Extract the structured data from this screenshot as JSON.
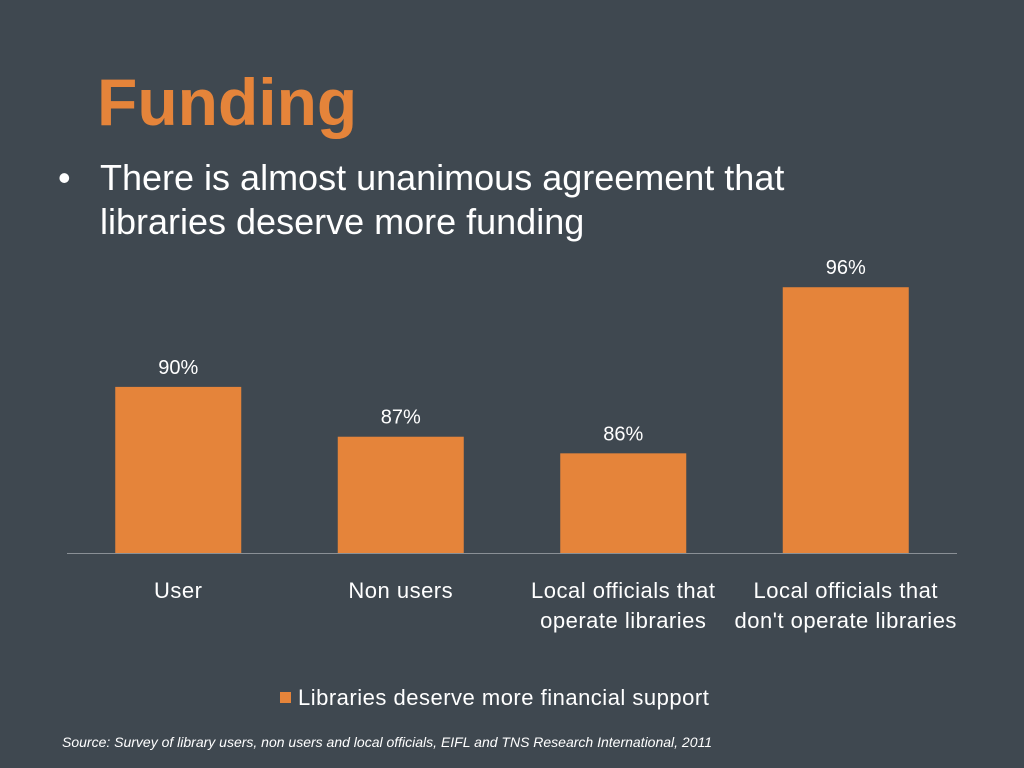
{
  "title": "Funding",
  "bullets": [
    "There is almost unanimous agreement that libraries deserve more funding"
  ],
  "source": "Source: Survey of library users, non users and local officials, EIFL and TNS Research International, 2011",
  "chart_data": {
    "type": "bar",
    "categories": [
      "User",
      "Non users",
      "Local officials that operate libraries",
      "Local officials that don't operate libraries"
    ],
    "series": [
      {
        "name": "Libraries deserve more financial support",
        "color": "#e5843a",
        "values": [
          90,
          87,
          86,
          96
        ],
        "value_labels": [
          "90%",
          "87%",
          "86%",
          "96%"
        ]
      }
    ],
    "ylim": [
      80,
      98
    ]
  }
}
